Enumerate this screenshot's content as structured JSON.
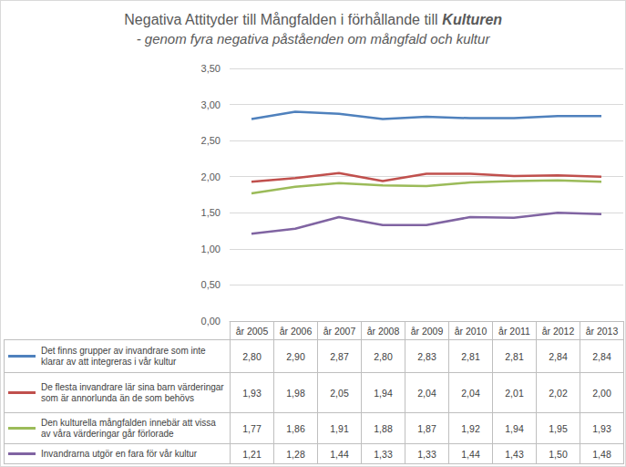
{
  "chart_data": {
    "type": "line",
    "title": "Negativa Attityder till Mångfalden i förhållande till Kulturen",
    "subtitle": "- genom fyra negativa påståenden om mångfald och kultur",
    "categories": [
      "år 2005",
      "år 2006",
      "år 2007",
      "år 2008",
      "år 2009",
      "år 2010",
      "år 2011",
      "år 2012",
      "år 2013"
    ],
    "series": [
      {
        "name": "Det finns grupper av invandrare som inte klarar av att integreras i vår kultur",
        "color": "#4f81bd",
        "values": [
          2.8,
          2.9,
          2.87,
          2.8,
          2.83,
          2.81,
          2.81,
          2.84,
          2.84
        ],
        "value_labels": [
          "2,80",
          "2,90",
          "2,87",
          "2,80",
          "2,83",
          "2,81",
          "2,81",
          "2,84",
          "2,84"
        ]
      },
      {
        "name": "De flesta invandrare lär sina barn värderingar som är annorlunda än de som behövs",
        "color": "#c0504d",
        "values": [
          1.93,
          1.98,
          2.05,
          1.94,
          2.04,
          2.04,
          2.01,
          2.02,
          2.0
        ],
        "value_labels": [
          "1,93",
          "1,98",
          "2,05",
          "1,94",
          "2,04",
          "2,04",
          "2,01",
          "2,02",
          "2,00"
        ]
      },
      {
        "name": "Den kulturella mångfalden innebär att vissa av våra värderingar går förlorade",
        "color": "#9bbb59",
        "values": [
          1.77,
          1.86,
          1.91,
          1.88,
          1.87,
          1.92,
          1.94,
          1.95,
          1.93
        ],
        "value_labels": [
          "1,77",
          "1,86",
          "1,91",
          "1,88",
          "1,87",
          "1,92",
          "1,94",
          "1,95",
          "1,93"
        ]
      },
      {
        "name": "Invandrarna utgör en fara för vår kultur",
        "color": "#8064a2",
        "values": [
          1.21,
          1.28,
          1.44,
          1.33,
          1.33,
          1.44,
          1.43,
          1.5,
          1.48
        ],
        "value_labels": [
          "1,21",
          "1,28",
          "1,44",
          "1,33",
          "1,33",
          "1,44",
          "1,43",
          "1,50",
          "1,48"
        ]
      }
    ],
    "ylim": [
      0,
      3.5
    ],
    "yticks": [
      {
        "value": 0,
        "label": "0,00"
      },
      {
        "value": 0.5,
        "label": "0,50"
      },
      {
        "value": 1,
        "label": "1,00"
      },
      {
        "value": 1.5,
        "label": "1,50"
      },
      {
        "value": 2,
        "label": "2,00"
      },
      {
        "value": 2.5,
        "label": "2,50"
      },
      {
        "value": 3,
        "label": "3,00"
      },
      {
        "value": 3.5,
        "label": "3,50"
      }
    ],
    "grid": true
  }
}
